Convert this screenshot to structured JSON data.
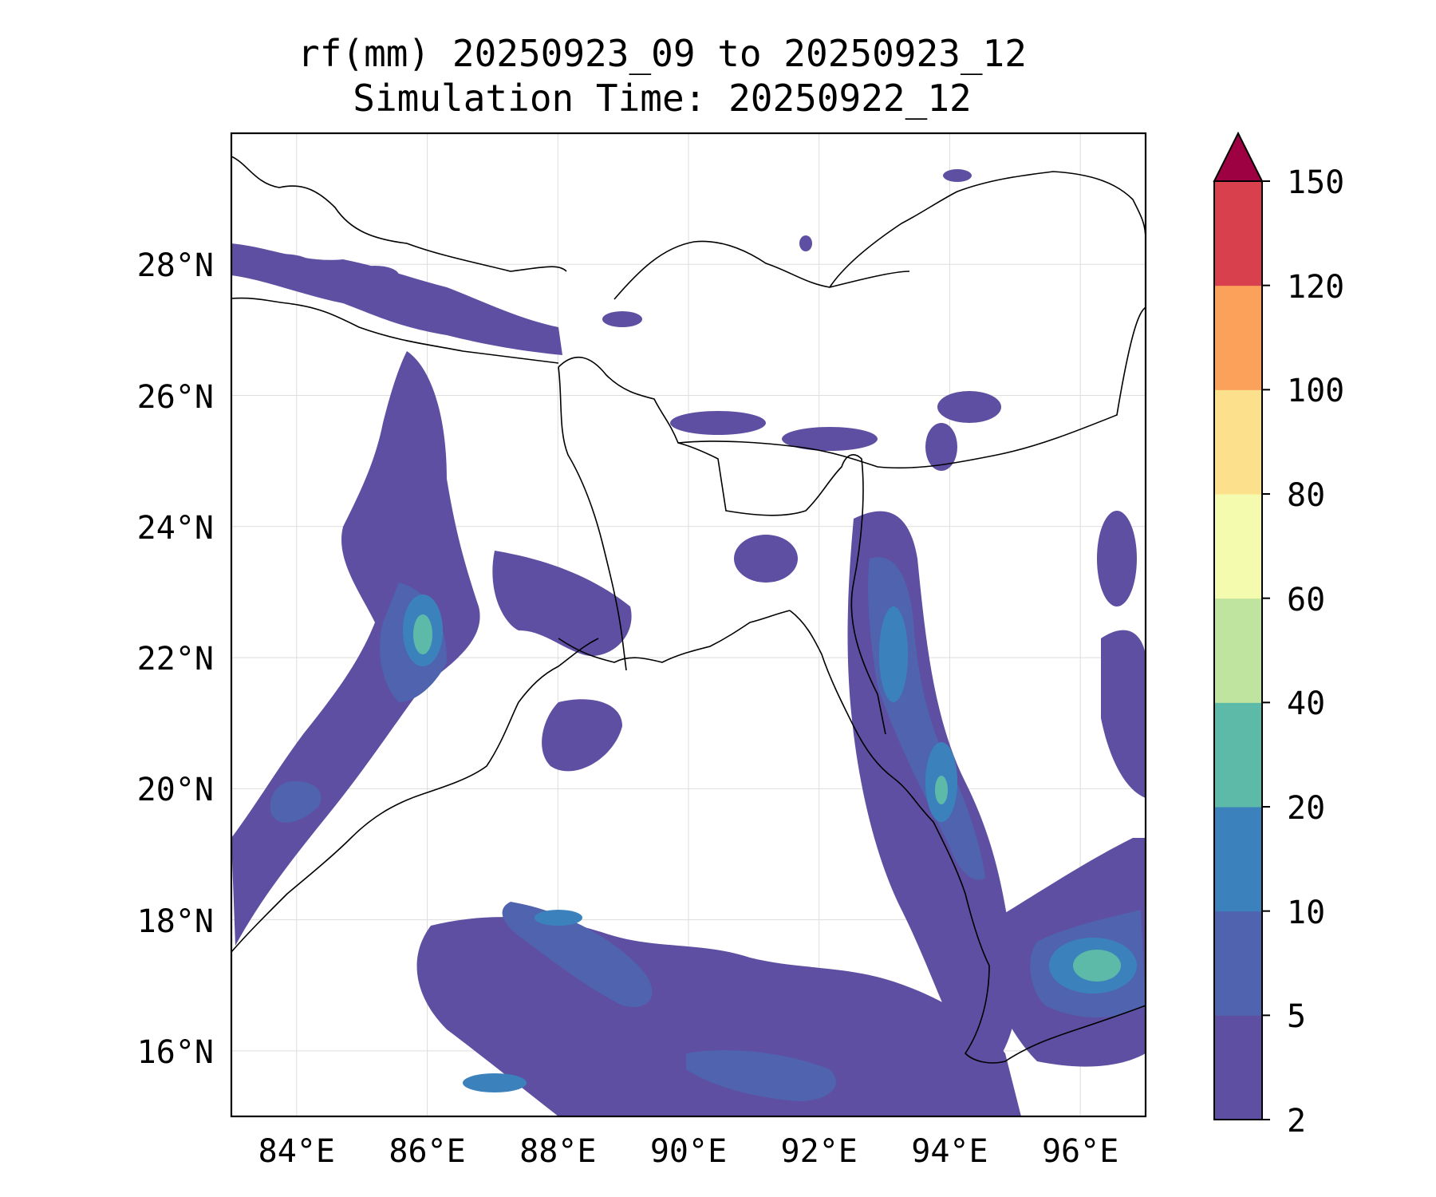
{
  "title": {
    "line1": "rf(mm) 20250923_09 to 20250923_12",
    "line2": "Simulation Time: 20250922_12"
  },
  "map": {
    "lon_range": [
      83,
      97
    ],
    "lat_range": [
      15,
      30
    ],
    "x_ticks": [
      {
        "lon": 84,
        "label": "84°E"
      },
      {
        "lon": 86,
        "label": "86°E"
      },
      {
        "lon": 88,
        "label": "88°E"
      },
      {
        "lon": 90,
        "label": "90°E"
      },
      {
        "lon": 92,
        "label": "92°E"
      },
      {
        "lon": 94,
        "label": "94°E"
      },
      {
        "lon": 96,
        "label": "96°E"
      }
    ],
    "y_ticks": [
      {
        "lat": 16,
        "label": "16°N"
      },
      {
        "lat": 18,
        "label": "18°N"
      },
      {
        "lat": 20,
        "label": "20°N"
      },
      {
        "lat": 22,
        "label": "22°N"
      },
      {
        "lat": 24,
        "label": "24°N"
      },
      {
        "lat": 26,
        "label": "26°N"
      },
      {
        "lat": 28,
        "label": "28°N"
      }
    ],
    "gridlines": true,
    "colorbar": {
      "levels": [
        "2",
        "5",
        "10",
        "20",
        "40",
        "60",
        "80",
        "100",
        "120",
        "150"
      ],
      "colors": [
        "#5e4fa2",
        "#4f63ae",
        "#3b82bd",
        "#5ebaa8",
        "#bfe4a0",
        "#f4fbae",
        "#fde08b",
        "#fba15a",
        "#d8404e"
      ],
      "extend_color": "#9e0142",
      "extend": "max"
    },
    "rain_palette": {
      "light": "#5e4fa2",
      "moderate": "#4f63ae",
      "heavy": "#3b82bd",
      "very_heavy": "#5ebaa8",
      "coast": "#000000"
    }
  }
}
